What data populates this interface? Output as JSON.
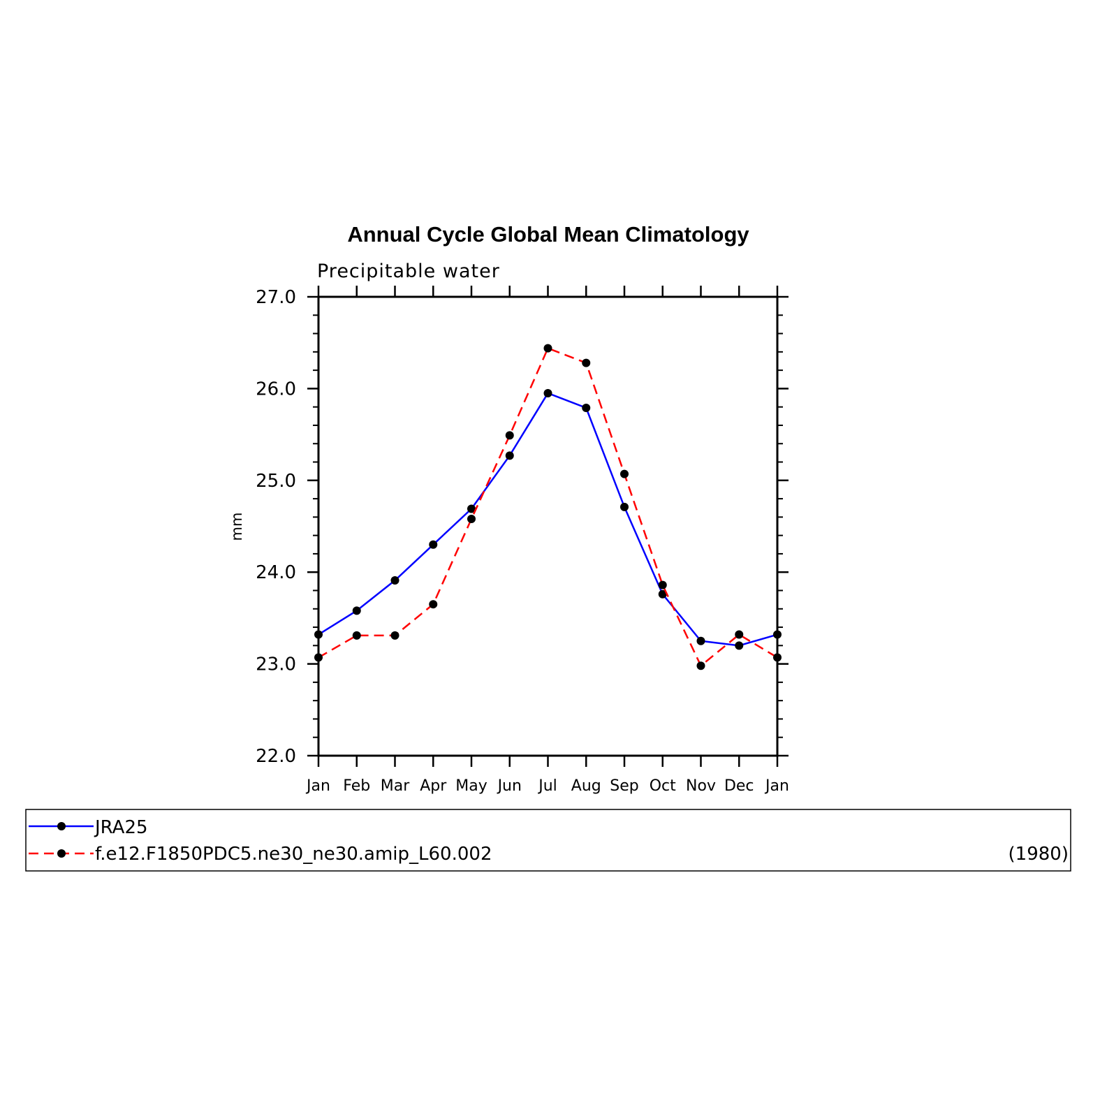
{
  "chart_data": {
    "type": "line",
    "title": "Annual Cycle Global Mean Climatology",
    "subtitle": "Precipitable water",
    "xlabel": "",
    "ylabel": "mm",
    "categories": [
      "Jan",
      "Feb",
      "Mar",
      "Apr",
      "May",
      "Jun",
      "Jul",
      "Aug",
      "Sep",
      "Oct",
      "Nov",
      "Dec",
      "Jan"
    ],
    "ylim": [
      22.0,
      27.0
    ],
    "yticks": [
      "22.0",
      "23.0",
      "24.0",
      "25.0",
      "26.0",
      "27.0"
    ],
    "grid": false,
    "legend_position": "bottom",
    "series": [
      {
        "name": "JRA25",
        "color": "#0000ff",
        "line_style": "solid",
        "marker": "filled-circle",
        "values": [
          23.32,
          23.58,
          23.91,
          24.3,
          24.69,
          25.27,
          25.95,
          25.79,
          24.71,
          23.76,
          23.25,
          23.2,
          23.32
        ]
      },
      {
        "name": "f.e12.F1850PDC5.ne30_ne30.amip_L60.002",
        "color": "#ff0000",
        "line_style": "dashed",
        "marker": "filled-circle",
        "values": [
          23.07,
          23.31,
          23.31,
          23.65,
          24.58,
          25.49,
          26.44,
          26.28,
          25.07,
          23.86,
          22.98,
          23.32,
          23.07
        ]
      }
    ],
    "legend_note": "(1980)"
  }
}
